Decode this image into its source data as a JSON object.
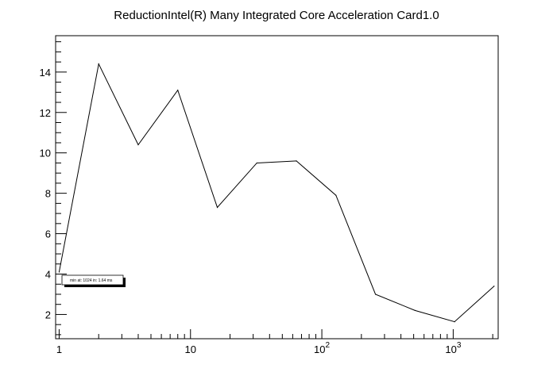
{
  "chart_data": {
    "type": "line",
    "title": "ReductionIntel(R) Many Integrated Core Acceleration Card1.0",
    "xlabel": "",
    "ylabel": "",
    "x_scale": "log",
    "xlim": [
      0.94,
      2200
    ],
    "ylim": [
      0.8,
      15.8
    ],
    "grid": false,
    "x_ticks": [
      {
        "value": 1,
        "base": "1",
        "exp": ""
      },
      {
        "value": 10,
        "base": "10",
        "exp": ""
      },
      {
        "value": 100,
        "base": "10",
        "exp": "2"
      },
      {
        "value": 1000,
        "base": "10",
        "exp": "3"
      }
    ],
    "y_ticks": [
      2,
      4,
      6,
      8,
      10,
      12,
      14
    ],
    "series": [
      {
        "x": [
          1,
          2,
          4,
          8,
          16,
          32,
          64,
          128,
          256,
          512,
          1024,
          2048
        ],
        "y": [
          4.1,
          14.4,
          10.4,
          13.1,
          7.3,
          9.5,
          9.6,
          7.9,
          3.0,
          2.2,
          1.64,
          3.4
        ],
        "color": "#000000"
      }
    ],
    "annotation": "min at: 1024 in: 1.64 ms"
  }
}
